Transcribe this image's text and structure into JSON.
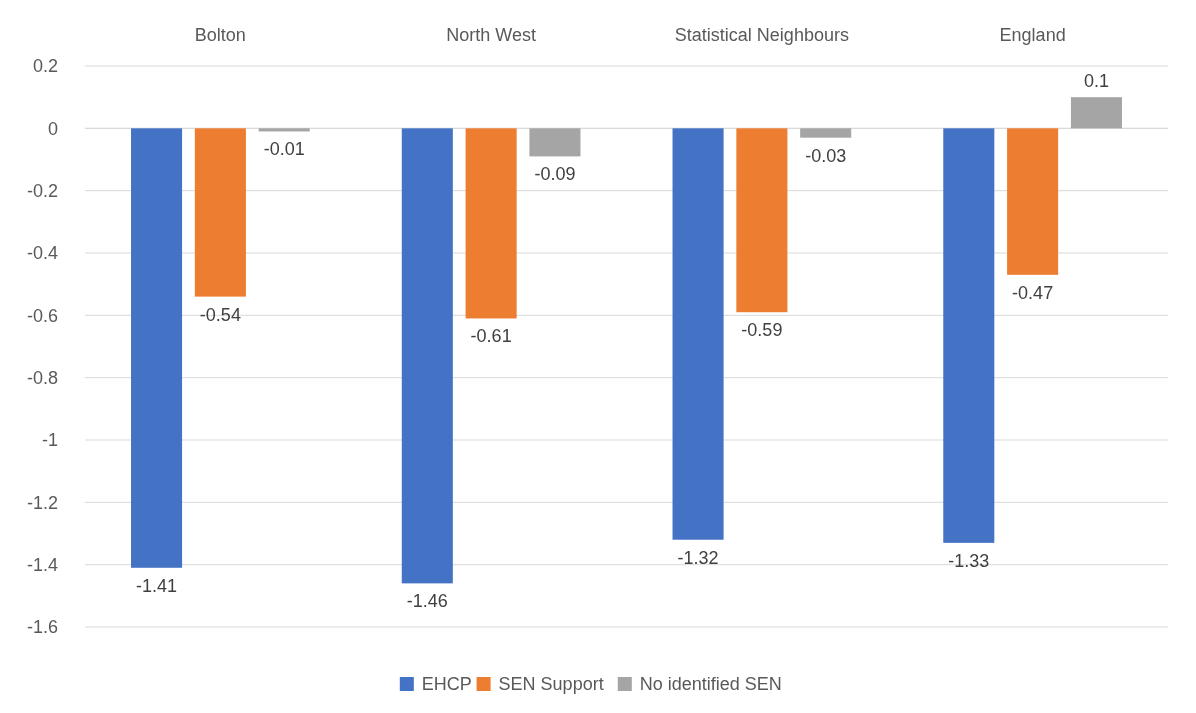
{
  "chart_data": {
    "type": "bar",
    "categories": [
      "Bolton",
      "North West",
      "Statistical Neighbours",
      "England"
    ],
    "series": [
      {
        "name": "EHCP",
        "color": "#4472c4",
        "values": [
          -1.41,
          -1.46,
          -1.32,
          -1.33
        ]
      },
      {
        "name": "SEN Support",
        "color": "#ed7d31",
        "values": [
          -0.54,
          -0.61,
          -0.59,
          -0.47
        ]
      },
      {
        "name": "No identified SEN",
        "color": "#a5a5a5",
        "values": [
          -0.01,
          -0.09,
          -0.03,
          0.1
        ]
      }
    ],
    "ylim": [
      -1.6,
      0.2
    ],
    "yticks": [
      0.2,
      0,
      -0.2,
      -0.4,
      -0.6,
      -0.8,
      -1,
      -1.2,
      -1.4,
      -1.6
    ],
    "grid": "y",
    "legend": "bottom",
    "data_labels": true
  }
}
